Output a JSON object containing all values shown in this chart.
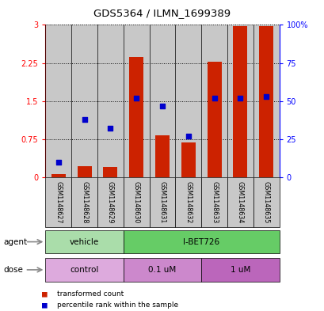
{
  "title": "GDS5364 / ILMN_1699389",
  "samples": [
    "GSM1148627",
    "GSM1148628",
    "GSM1148629",
    "GSM1148630",
    "GSM1148631",
    "GSM1148632",
    "GSM1148633",
    "GSM1148634",
    "GSM1148635"
  ],
  "red_values": [
    0.07,
    0.22,
    0.2,
    2.37,
    0.82,
    0.68,
    2.28,
    2.97,
    2.97
  ],
  "blue_values_pct": [
    10.0,
    38.0,
    32.0,
    52.0,
    47.0,
    27.0,
    52.0,
    52.0,
    53.0
  ],
  "ylim_left": [
    0,
    3
  ],
  "ylim_right": [
    0,
    100
  ],
  "yticks_left": [
    0,
    0.75,
    1.5,
    2.25,
    3
  ],
  "ytick_labels_left": [
    "0",
    "0.75",
    "1.5",
    "2.25",
    "3"
  ],
  "yticks_right": [
    0,
    25,
    50,
    75,
    100
  ],
  "ytick_labels_right": [
    "0",
    "25",
    "50",
    "75",
    "100%"
  ],
  "agent_labels": [
    {
      "text": "vehicle",
      "start": 0,
      "end": 3,
      "color": "#aaddaa"
    },
    {
      "text": "I-BET726",
      "start": 3,
      "end": 9,
      "color": "#66cc66"
    }
  ],
  "dose_labels": [
    {
      "text": "control",
      "start": 0,
      "end": 3,
      "color": "#ddaadd"
    },
    {
      "text": "0.1 uM",
      "start": 3,
      "end": 6,
      "color": "#cc88cc"
    },
    {
      "text": "1 uM",
      "start": 6,
      "end": 9,
      "color": "#bb66bb"
    }
  ],
  "bar_color": "#cc2200",
  "dot_color": "#0000cc",
  "bar_width": 0.55,
  "dot_size": 18,
  "bar_bg_color": "#c8c8c8",
  "legend_red": "transformed count",
  "legend_blue": "percentile rank within the sample",
  "arrow_color": "#888888"
}
